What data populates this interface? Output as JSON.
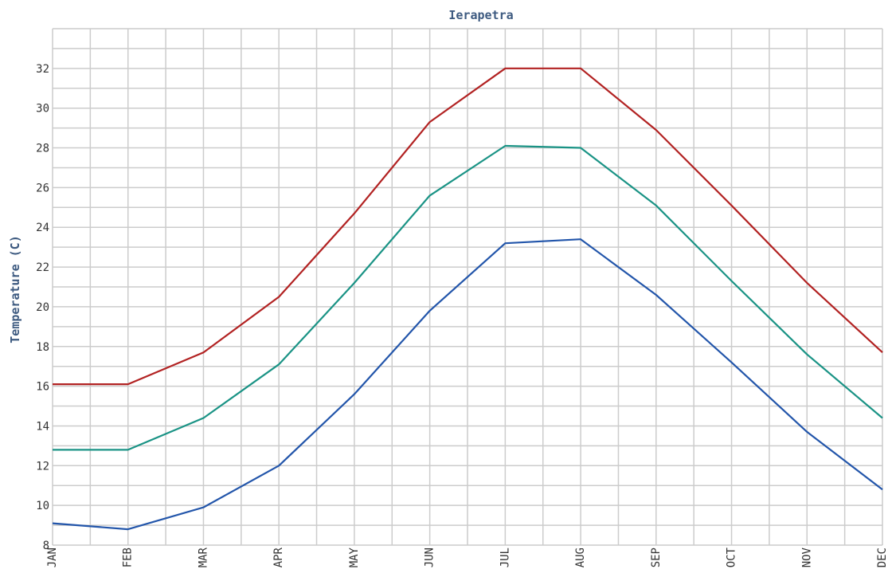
{
  "chart_data": {
    "type": "line",
    "title": "Ierapetra",
    "xlabel": "",
    "ylabel": "Temperature (C)",
    "categories": [
      "JAN",
      "FEB",
      "MAR",
      "APR",
      "MAY",
      "JUN",
      "JUL",
      "AUG",
      "SEP",
      "OCT",
      "NOV",
      "DEC"
    ],
    "ylim": [
      8,
      34
    ],
    "yticks": [
      8,
      10,
      12,
      14,
      16,
      18,
      20,
      22,
      24,
      26,
      28,
      30,
      32
    ],
    "grid": true,
    "legend": "none",
    "series": [
      {
        "color": "#b22222",
        "values": [
          16.1,
          16.1,
          17.7,
          20.5,
          24.7,
          29.3,
          32.0,
          32.0,
          28.9,
          25.1,
          21.2,
          17.7
        ]
      },
      {
        "color": "#1a9385",
        "values": [
          12.8,
          12.8,
          14.4,
          17.1,
          21.2,
          25.6,
          28.1,
          28.0,
          25.1,
          21.3,
          17.6,
          14.4
        ]
      },
      {
        "color": "#2255aa",
        "values": [
          9.1,
          8.8,
          9.9,
          12.0,
          15.6,
          19.8,
          23.2,
          23.4,
          20.6,
          17.2,
          13.7,
          10.8
        ]
      }
    ]
  }
}
